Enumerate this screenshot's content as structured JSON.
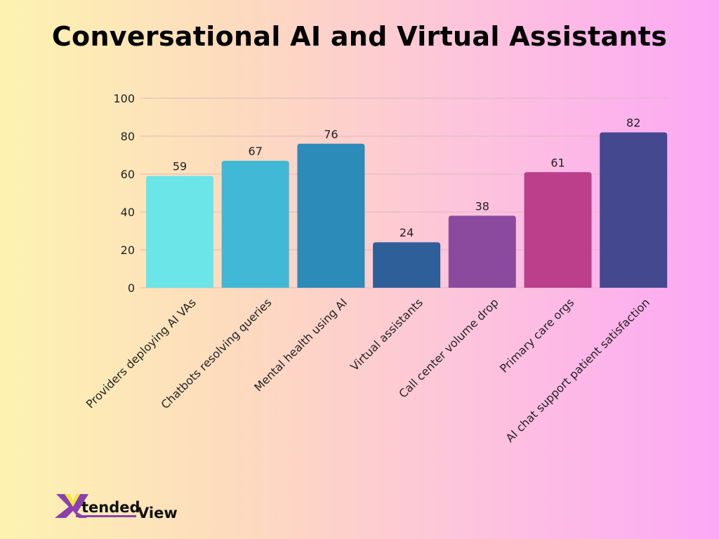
{
  "chart_data": {
    "type": "bar",
    "title": "Conversational AI and Virtual Assistants",
    "xlabel": "",
    "ylabel": "",
    "ylim": [
      0,
      100
    ],
    "yticks": [
      0,
      20,
      40,
      60,
      80,
      100
    ],
    "grid": true,
    "categories": [
      "Providers deploying AI VAs",
      "Chatbots resolving queries",
      "Mental health using AI",
      "Virtual assistants",
      "Call center volume drop",
      "Primary care orgs",
      "AI chat support patient satisfaction"
    ],
    "values": [
      59,
      67,
      76,
      24,
      38,
      61,
      82
    ],
    "colors": [
      "#6ce5e8",
      "#41b8d5",
      "#2d8bba",
      "#2f5f98",
      "#8c4a9e",
      "#bb3f8a",
      "#43488f"
    ]
  },
  "logo": {
    "text": "XtendedView"
  }
}
